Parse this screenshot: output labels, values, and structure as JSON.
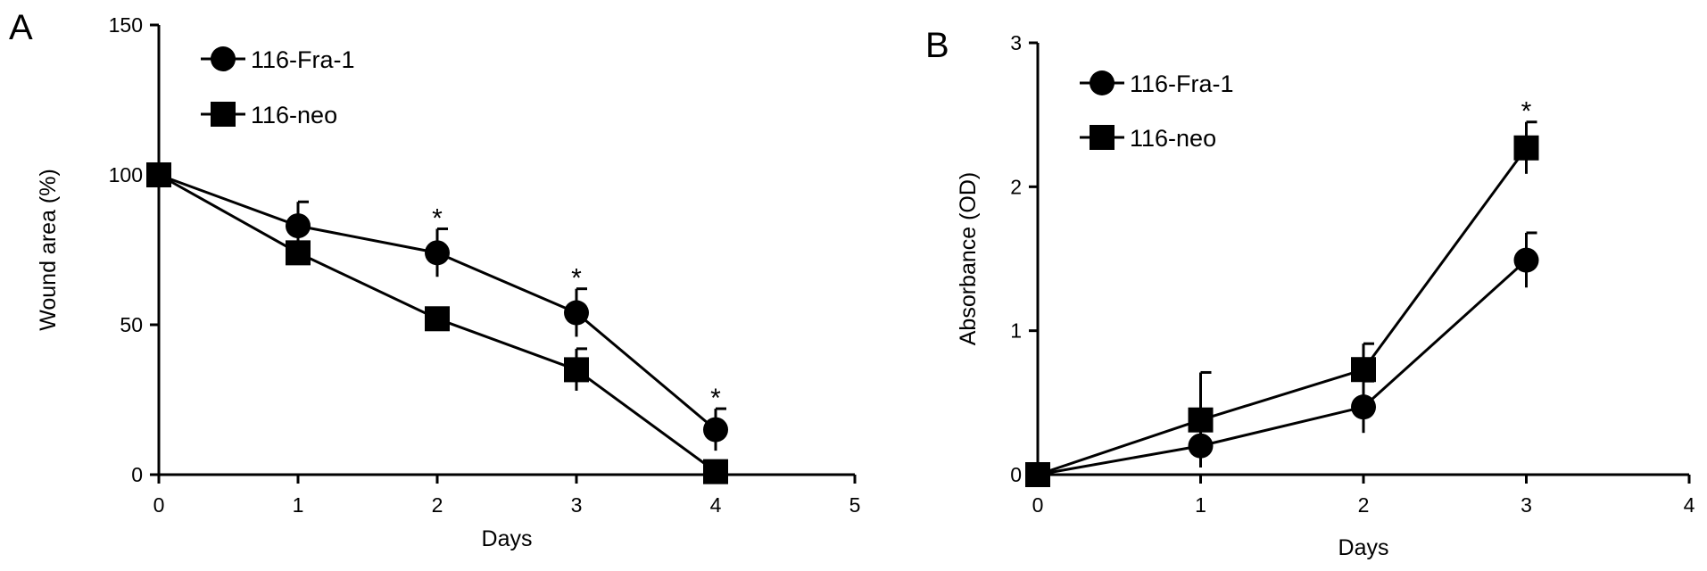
{
  "chart_data": [
    {
      "panel": "A",
      "type": "line",
      "xlabel": "Days",
      "ylabel": "Wound area (%)",
      "xlim": [
        0,
        5
      ],
      "ylim": [
        0,
        150
      ],
      "xticks": [
        0,
        1,
        2,
        3,
        4,
        5
      ],
      "yticks": [
        0,
        50,
        100,
        150
      ],
      "grid": false,
      "legend": "top-left",
      "series": [
        {
          "name": "116-Fra-1",
          "marker": "circle",
          "x": [
            0,
            1,
            2,
            3,
            4
          ],
          "y": [
            100,
            83,
            74,
            54,
            15
          ],
          "err": [
            0,
            8,
            8,
            8,
            7
          ],
          "significant": [
            false,
            false,
            true,
            true,
            true
          ]
        },
        {
          "name": "116-neo",
          "marker": "square",
          "x": [
            0,
            1,
            2,
            3,
            4
          ],
          "y": [
            100,
            74,
            52,
            35,
            1
          ],
          "err": [
            0,
            0,
            0,
            7,
            0
          ],
          "significant": [
            false,
            false,
            false,
            false,
            false
          ]
        }
      ],
      "annotation": "*"
    },
    {
      "panel": "B",
      "type": "line",
      "xlabel": "Days",
      "ylabel": "Absorbance (OD)",
      "xlim": [
        0,
        4
      ],
      "ylim": [
        0,
        3
      ],
      "xticks": [
        0,
        1,
        2,
        3,
        4
      ],
      "yticks": [
        0,
        1,
        2,
        3
      ],
      "grid": false,
      "legend": "top-left",
      "series": [
        {
          "name": "116-Fra-1",
          "marker": "circle",
          "x": [
            0,
            1,
            2,
            3
          ],
          "y": [
            0,
            0.2,
            0.47,
            1.49
          ],
          "err": [
            0,
            0.15,
            0.18,
            0.19
          ],
          "significant": [
            false,
            false,
            false,
            false
          ]
        },
        {
          "name": "116-neo",
          "marker": "square",
          "x": [
            0,
            1,
            2,
            3
          ],
          "y": [
            0,
            0.38,
            0.73,
            2.27
          ],
          "err": [
            0,
            0.33,
            0.18,
            0.18
          ],
          "significant": [
            false,
            false,
            false,
            true
          ]
        }
      ],
      "annotation": "*"
    }
  ]
}
